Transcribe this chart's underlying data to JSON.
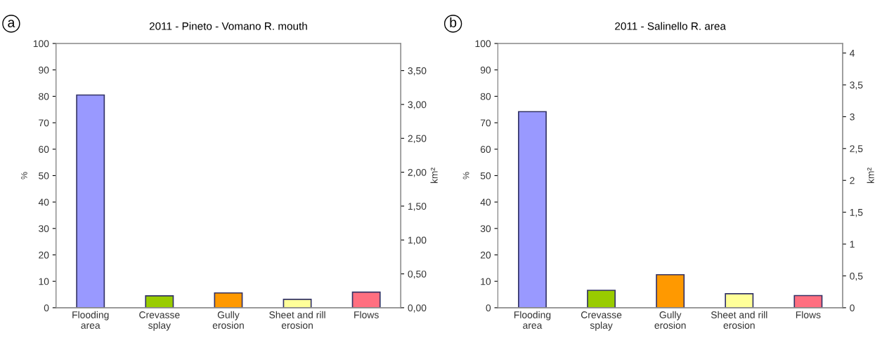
{
  "chart_data": [
    {
      "type": "bar",
      "title": "2011 - Pineto - Vomano R. mouth",
      "ylabel": "%",
      "y2label": "km²",
      "annotations": [
        "a"
      ],
      "categories": [
        "Flooding\narea",
        "Crevasse\nsplay",
        "Gully\nerosion",
        "Sheet and rill\nerosion",
        "Flows"
      ],
      "values": [
        80.5,
        4.5,
        5.6,
        3.2,
        5.9
      ],
      "colors": [
        "#9999ff",
        "#99cc00",
        "#ff9900",
        "#ffff99",
        "#ff6f80"
      ],
      "ylim": [
        0,
        100
      ],
      "yticks": [
        0,
        10,
        20,
        30,
        40,
        50,
        60,
        70,
        80,
        90,
        100
      ],
      "y2lim": [
        0,
        3.9
      ],
      "y2ticks": [
        {
          "value": 0,
          "label": "0,00"
        },
        {
          "value": 0.5,
          "label": "0,50"
        },
        {
          "value": 1,
          "label": "1,00"
        },
        {
          "value": 1.5,
          "label": "1,50"
        },
        {
          "value": 2,
          "label": "2,00"
        },
        {
          "value": 2.5,
          "label": "2,50"
        },
        {
          "value": 3,
          "label": "3,00"
        },
        {
          "value": 3.5,
          "label": "3,50"
        }
      ],
      "grid": false,
      "legend": false
    },
    {
      "type": "bar",
      "title": "2011 - Salinello R. area",
      "ylabel": "%",
      "y2label": "km²",
      "annotations": [
        "b"
      ],
      "categories": [
        "Flooding\narea",
        "Crevasse\nsplay",
        "Gully\nerosion",
        "Sheet and rill\nerosion",
        "Flows"
      ],
      "values": [
        74.2,
        6.6,
        12.5,
        5.3,
        4.6
      ],
      "colors": [
        "#9999ff",
        "#99cc00",
        "#ff9900",
        "#ffff99",
        "#ff6f80"
      ],
      "ylim": [
        0,
        100
      ],
      "yticks": [
        0,
        10,
        20,
        30,
        40,
        50,
        60,
        70,
        80,
        90,
        100
      ],
      "y2lim": [
        0,
        4.15
      ],
      "y2ticks": [
        0,
        {
          "value": 0.5,
          "label": "0,5"
        },
        1,
        {
          "value": 1.5,
          "label": "1,5"
        },
        2,
        {
          "value": 2.5,
          "label": "2,5"
        },
        3,
        {
          "value": 3.5,
          "label": "3,5"
        },
        4
      ],
      "grid": false,
      "legend": false
    }
  ]
}
